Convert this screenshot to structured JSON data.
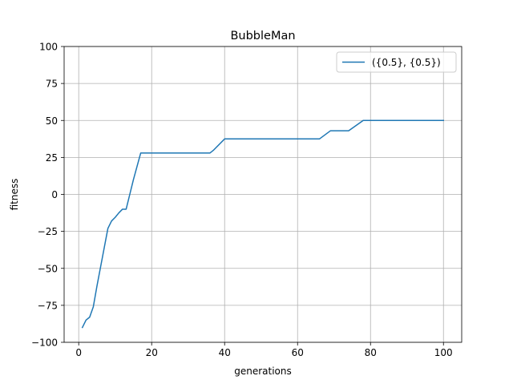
{
  "chart_data": {
    "type": "line",
    "title": "BubbleMan",
    "xlabel": "generations",
    "ylabel": "fitness",
    "xlim": [
      -4.0,
      105.0
    ],
    "ylim": [
      -100,
      100
    ],
    "x_ticks": [
      0,
      20,
      40,
      60,
      80,
      100
    ],
    "x_tick_labels": [
      "0",
      "20",
      "40",
      "60",
      "80",
      "100"
    ],
    "y_ticks": [
      -100,
      -75,
      -50,
      -25,
      0,
      25,
      50,
      75,
      100
    ],
    "y_tick_labels": [
      "−100",
      "−75",
      "−50",
      "−25",
      "0",
      "25",
      "50",
      "75",
      "100"
    ],
    "grid": true,
    "legend_position": "top-right",
    "series": [
      {
        "name": "({0.5}, {0.5})",
        "color": "#1f77b4",
        "x": [
          1,
          2,
          3,
          4,
          5,
          6,
          7,
          8,
          9,
          10,
          11,
          12,
          13,
          14,
          15,
          16,
          17,
          18,
          20,
          25,
          30,
          35,
          36,
          37,
          40,
          45,
          50,
          55,
          60,
          65,
          66,
          69,
          72,
          74,
          78,
          80,
          85,
          90,
          95,
          100
        ],
        "y": [
          -90,
          -85,
          -83,
          -76,
          -62,
          -49,
          -36,
          -23,
          -18,
          -15.5,
          -12.5,
          -10,
          -10,
          0,
          10,
          19,
          28,
          28,
          28,
          28,
          28,
          28,
          28,
          30,
          37.5,
          37.5,
          37.5,
          37.5,
          37.5,
          37.5,
          37.5,
          43,
          43,
          43,
          50,
          50,
          50,
          50,
          50,
          50
        ]
      }
    ]
  }
}
